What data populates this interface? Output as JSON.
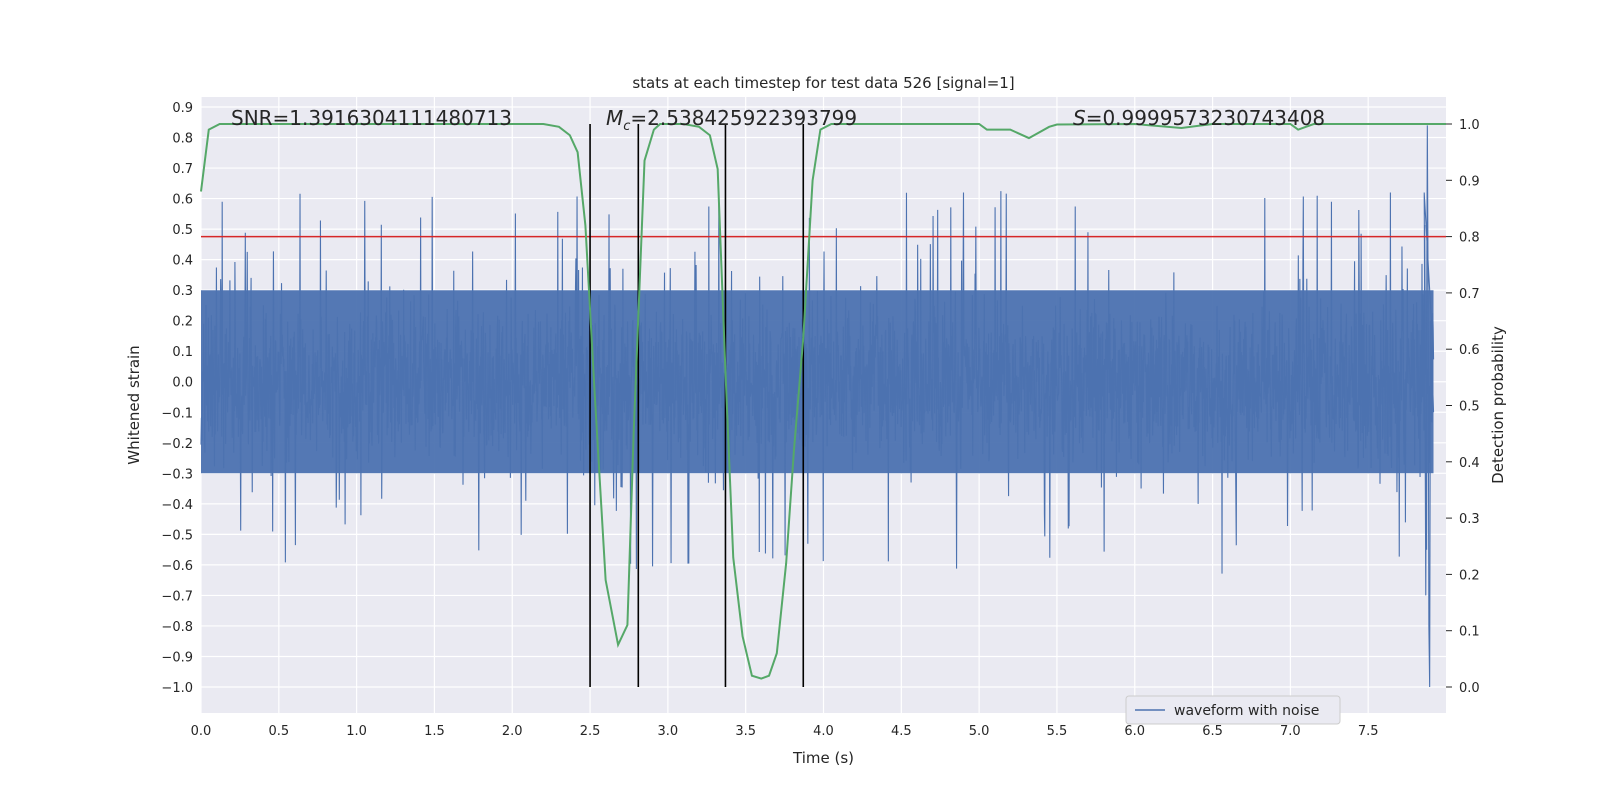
{
  "chart_data": {
    "type": "line",
    "title": "stats at each timestep for test data 526 [signal=1]",
    "xlabel": "Time (s)",
    "ylabel": "Whitened strain",
    "y2label": "Detection probability",
    "xlim": [
      0.0,
      8.0
    ],
    "ylim": [
      -1.0,
      0.9
    ],
    "y2lim": [
      0.0,
      1.0
    ],
    "xticks": [
      "0.0",
      "0.5",
      "1.0",
      "1.5",
      "2.0",
      "2.5",
      "3.0",
      "3.5",
      "4.0",
      "4.5",
      "5.0",
      "5.5",
      "6.0",
      "6.5",
      "7.0",
      "7.5"
    ],
    "yticks": [
      "0.9",
      "0.8",
      "0.7",
      "0.6",
      "0.5",
      "0.4",
      "0.3",
      "0.2",
      "0.1",
      "0.0",
      "−0.1",
      "−0.2",
      "−0.3",
      "−0.4",
      "−0.5",
      "−0.6",
      "−0.7",
      "−0.8",
      "−0.9",
      "−1.0"
    ],
    "y2ticks": [
      "1.0",
      "0.9",
      "0.8",
      "0.7",
      "0.6",
      "0.5",
      "0.4",
      "0.3",
      "0.2",
      "0.1",
      "0.0"
    ],
    "grid": true,
    "legend": {
      "position": "lower-right",
      "entries": [
        "waveform with noise"
      ]
    },
    "annotations": {
      "snr": "SNR=1.3916304111480713",
      "mc_symbol": "M",
      "mc_sub": "c",
      "mc_value": "=2.538425922393799",
      "s_symbol": "S",
      "s_value": "=0.9999573230743408"
    },
    "threshold_line": {
      "y2": 0.8,
      "color": "#d62728"
    },
    "vertical_lines_x": [
      2.5,
      2.81,
      3.37,
      3.87
    ],
    "colors": {
      "waveform": "#4c72b0",
      "probability": "#55a868",
      "vlines": "#000000",
      "axes_bg": "#eaeaf2"
    },
    "series": [
      {
        "name": "waveform with noise",
        "style": "dense noisy strain signal, bulk amplitude about ±0.3, spikes to about ±0.6, peak 0.84 and minimum −1.0 near t=7.9 s",
        "envelope": {
          "bulk": 0.3,
          "spike": 0.6,
          "max": 0.84,
          "min": -1.0
        }
      },
      {
        "role": "detection probability (right axis)",
        "x": [
          0.0,
          0.05,
          0.12,
          0.5,
          1.0,
          1.5,
          2.0,
          2.2,
          2.3,
          2.37,
          2.42,
          2.47,
          2.53,
          2.6,
          2.68,
          2.74,
          2.78,
          2.85,
          2.91,
          2.95,
          3.0,
          3.1,
          3.2,
          3.27,
          3.32,
          3.37,
          3.42,
          3.48,
          3.54,
          3.6,
          3.65,
          3.7,
          3.76,
          3.81,
          3.87,
          3.93,
          3.98,
          4.05,
          4.5,
          5.0,
          5.05,
          5.2,
          5.32,
          5.45,
          5.5,
          6.0,
          6.3,
          6.5,
          7.0,
          7.05,
          7.15,
          7.9,
          8.0
        ],
        "y": [
          0.88,
          0.99,
          1.0,
          1.0,
          1.0,
          1.0,
          1.0,
          1.0,
          0.995,
          0.98,
          0.95,
          0.82,
          0.52,
          0.19,
          0.075,
          0.11,
          0.45,
          0.935,
          0.99,
          1.0,
          1.0,
          1.0,
          0.995,
          0.98,
          0.92,
          0.56,
          0.23,
          0.09,
          0.02,
          0.015,
          0.02,
          0.06,
          0.22,
          0.42,
          0.62,
          0.9,
          0.99,
          1.0,
          1.0,
          1.0,
          0.99,
          0.99,
          0.975,
          0.995,
          0.999,
          1.0,
          0.993,
          1.0,
          1.0,
          0.99,
          1.0,
          1.0,
          1.0
        ]
      }
    ]
  }
}
